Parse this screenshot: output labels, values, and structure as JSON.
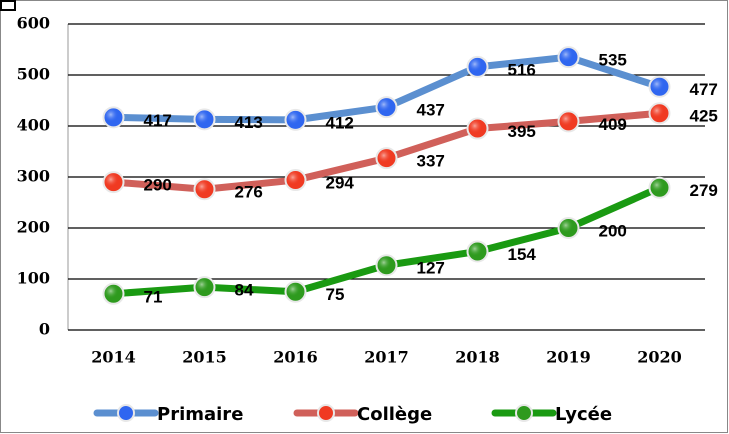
{
  "chart_data": {
    "type": "line",
    "categories": [
      "2014",
      "2015",
      "2016",
      "2017",
      "2018",
      "2019",
      "2020"
    ],
    "series": [
      {
        "name": "Primaire",
        "color": "#5b8fd0",
        "marker_color": "#2f66f0",
        "values": [
          417,
          413,
          412,
          437,
          516,
          535,
          477
        ]
      },
      {
        "name": "Collège",
        "color": "#d0605a",
        "marker_color": "#f03a22",
        "values": [
          290,
          276,
          294,
          337,
          395,
          409,
          425
        ]
      },
      {
        "name": "Lycée",
        "color": "#1a9a12",
        "marker_color": "#2e9a1e",
        "values": [
          71,
          84,
          75,
          127,
          154,
          200,
          279
        ]
      }
    ],
    "ylim": [
      0,
      600
    ],
    "yticks": [
      0,
      100,
      200,
      300,
      400,
      500,
      600
    ],
    "grid": true,
    "legend": "bottom"
  }
}
